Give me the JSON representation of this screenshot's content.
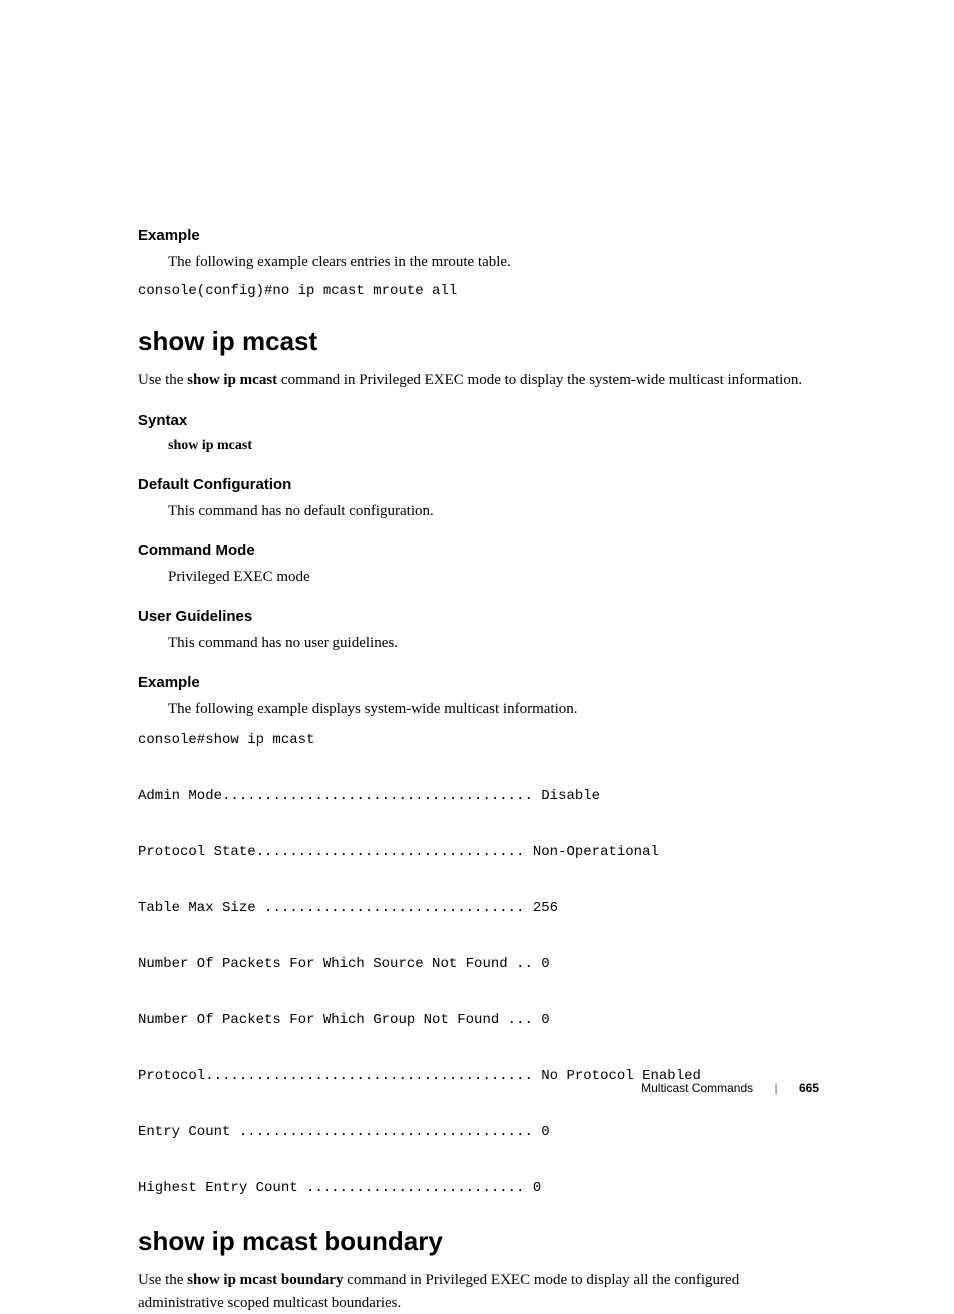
{
  "section1": {
    "heading": "Example",
    "body": "The following example clears entries in the mroute table.",
    "code": "console(config)#no ip mcast mroute all"
  },
  "command1": {
    "title": "show ip mcast",
    "desc_pre": "Use the ",
    "desc_bold": "show ip mcast",
    "desc_post": " command in Privileged EXEC mode to display the system-wide multicast information.",
    "syntax": {
      "heading": "Syntax",
      "text": "show ip mcast"
    },
    "defaultcfg": {
      "heading": "Default Configuration",
      "text": "This command has no default configuration."
    },
    "cmdmode": {
      "heading": "Command Mode",
      "text": "Privileged EXEC mode"
    },
    "guidelines": {
      "heading": "User Guidelines",
      "text": "This command has no user guidelines."
    },
    "example": {
      "heading": "Example",
      "text": "The following example displays system-wide multicast information.",
      "code": "console#show ip mcast\n\nAdmin Mode..................................... Disable\n\nProtocol State................................ Non-Operational\n\nTable Max Size ............................... 256\n\nNumber Of Packets For Which Source Not Found .. 0\n\nNumber Of Packets For Which Group Not Found ... 0\n\nProtocol....................................... No Protocol Enabled\n\nEntry Count ................................... 0\n\nHighest Entry Count .......................... 0"
    }
  },
  "command2": {
    "title": "show ip mcast boundary",
    "desc_pre": "Use the ",
    "desc_bold": "show ip mcast boundary",
    "desc_post": " command in Privileged EXEC mode to display all the configured administrative scoped multicast boundaries."
  },
  "footer": {
    "chapter": "Multicast Commands",
    "separator": "|",
    "page": "665"
  }
}
